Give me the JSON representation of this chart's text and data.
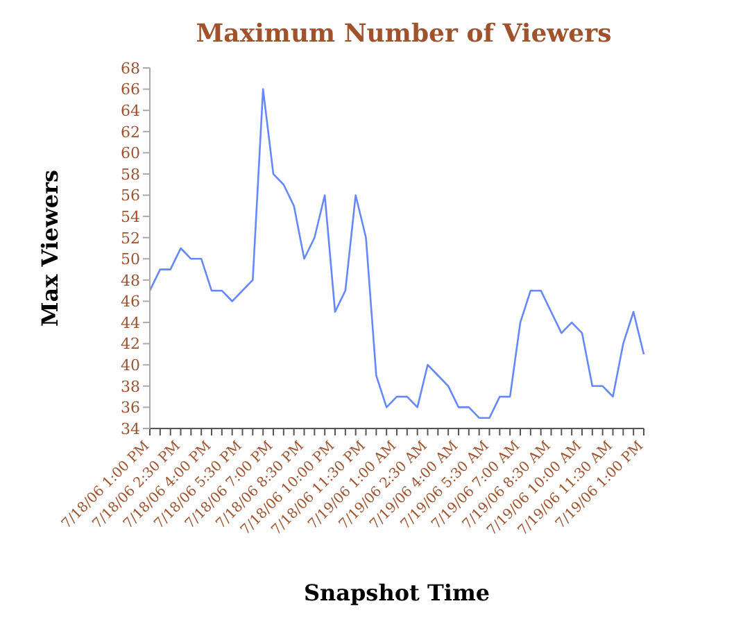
{
  "chart_data": {
    "type": "line",
    "title": "Maximum Number of Viewers",
    "xlabel": "Snapshot Time",
    "ylabel": "Max Viewers",
    "categories": [
      "7/18/06 1:00 PM",
      null,
      null,
      "7/18/06 2:30 PM",
      null,
      null,
      "7/18/06 4:00 PM",
      null,
      null,
      "7/18/06 5:30 PM",
      null,
      null,
      "7/18/06 7:00 PM",
      null,
      null,
      "7/18/06 8:30 PM",
      null,
      null,
      "7/18/06 10:00 PM",
      null,
      null,
      "7/18/06 11:30 PM",
      null,
      null,
      "7/19/06 1:00 AM",
      null,
      null,
      "7/19/06 2:30 AM",
      null,
      null,
      "7/19/06 4:00 AM",
      null,
      null,
      "7/19/06 5:30 AM",
      null,
      null,
      "7/19/06 7:00 AM",
      null,
      null,
      "7/19/06 8:30 AM",
      null,
      null,
      "7/19/06 10:00 AM",
      null,
      null,
      "7/19/06 11:30 AM",
      null,
      null,
      "7/19/06 1:00 PM"
    ],
    "series": [
      {
        "color": "#6688ff",
        "values": [
          47,
          49,
          49,
          51,
          50,
          50,
          47,
          47,
          46,
          47,
          48,
          66,
          58,
          57,
          55,
          50,
          52,
          56,
          45,
          47,
          56,
          52,
          39,
          36,
          37,
          37,
          36,
          40,
          39,
          38,
          36,
          36,
          35,
          35,
          37,
          37,
          44,
          47,
          47,
          45,
          43,
          44,
          43,
          38,
          38,
          37,
          42,
          45,
          41
        ]
      }
    ],
    "ylim": [
      34,
      68
    ],
    "yticks": [
      34,
      36,
      38,
      40,
      42,
      44,
      46,
      48,
      50,
      52,
      54,
      56,
      58,
      60,
      62,
      64,
      66,
      68
    ],
    "grid": false,
    "legend": false,
    "marker": "none",
    "line_style": "solid"
  }
}
